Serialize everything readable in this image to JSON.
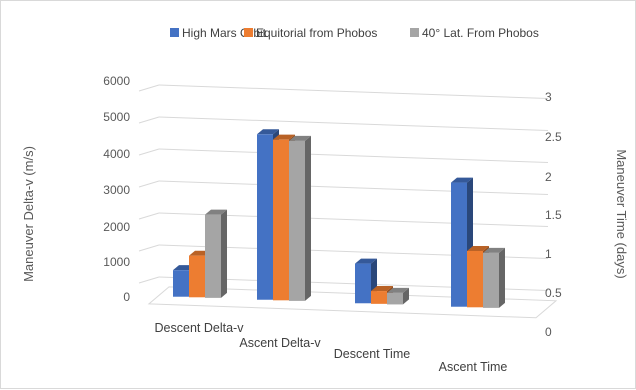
{
  "chart_data": {
    "type": "bar",
    "categories": [
      "Descent Delta-v",
      "Ascent Delta-v",
      "Descent Time",
      "Ascent Time"
    ],
    "series": [
      {
        "name": "High Mars Orbit",
        "color": "#4472c4",
        "values": [
          830,
          5170,
          0.62,
          1.94
        ]
      },
      {
        "name": "Equitorial from Phobos",
        "color": "#ed7d31",
        "values": [
          1300,
          5020,
          0.2,
          0.88
        ]
      },
      {
        "name": "40° Lat. From Phobos",
        "color": "#a5a5a5",
        "values": [
          2600,
          5000,
          0.18,
          0.86
        ]
      }
    ],
    "primary_axis": {
      "label": "Maneuver Delta-v (m/s)",
      "ticks": [
        "0",
        "1000",
        "2000",
        "3000",
        "4000",
        "5000",
        "6000"
      ],
      "ylim": [
        0,
        6000
      ],
      "applies_to": [
        "Descent Delta-v",
        "Ascent Delta-v"
      ]
    },
    "secondary_axis": {
      "label": "Maneuver Time (days)",
      "ticks": [
        "0",
        "0.5",
        "1",
        "1.5",
        "2",
        "2.5",
        "3"
      ],
      "ylim": [
        0,
        3
      ],
      "applies_to": [
        "Descent Time",
        "Ascent Time"
      ]
    },
    "legend_position": "top",
    "grid": true,
    "style": "3d-clustered-column"
  }
}
